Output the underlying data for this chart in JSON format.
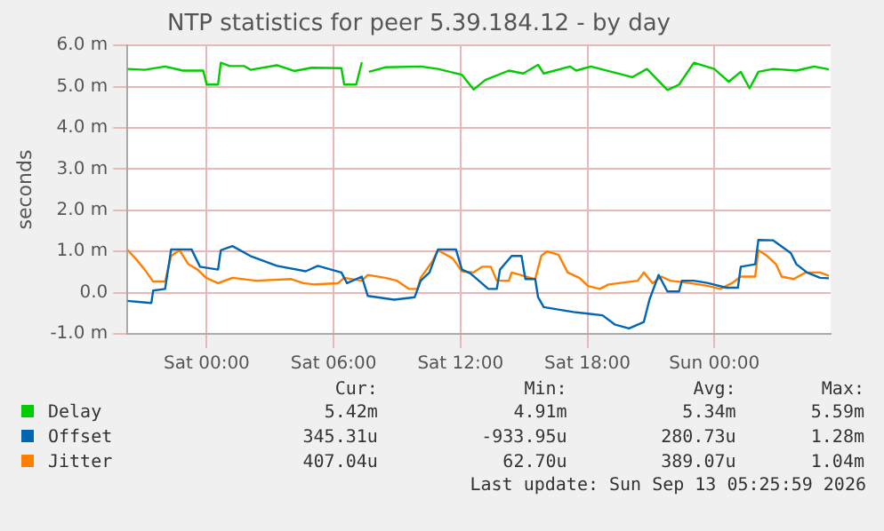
{
  "chart_data": {
    "type": "line",
    "title": "NTP statistics for peer 5.39.184.12 - by day",
    "ylabel": "seconds",
    "xlim": [
      "2026-09-11T20:15",
      "2026-09-13T05:30"
    ],
    "xticks": [
      {
        "value": "2026-09-12T00:00",
        "label": "Sat 00:00"
      },
      {
        "value": "2026-09-12T06:00",
        "label": "Sat 06:00"
      },
      {
        "value": "2026-09-12T12:00",
        "label": "Sat 12:00"
      },
      {
        "value": "2026-09-12T18:00",
        "label": "Sat 18:00"
      },
      {
        "value": "2026-09-13T00:00",
        "label": "Sun 00:00"
      }
    ],
    "ylim": [
      -1,
      6
    ],
    "yticks": [
      {
        "value": -1,
        "label": "-1.0 m"
      },
      {
        "value": 0,
        "label": "0.0"
      },
      {
        "value": 1,
        "label": "1.0 m"
      },
      {
        "value": 2,
        "label": "2.0 m"
      },
      {
        "value": 3,
        "label": "3.0 m"
      },
      {
        "value": 4,
        "label": "4.0 m"
      },
      {
        "value": 5,
        "label": "5.0 m"
      },
      {
        "value": 6,
        "label": "6.0 m"
      }
    ],
    "grid": true,
    "legend": "bottom",
    "marker": "none",
    "line_style": "solid",
    "series": [
      {
        "name": "Delay",
        "color": "#00cc00",
        "x": [
          "2026-09-11T20:15",
          "2026-09-11T21:04",
          "2026-09-11T22:02",
          "2026-09-11T22:52",
          "2026-09-11T23:50",
          "2026-09-12T00:00",
          "2026-09-12T00:32",
          "2026-09-12T00:40",
          "2026-09-12T01:05",
          "2026-09-12T01:47",
          "2026-09-12T02:04",
          "2026-09-12T03:19",
          "2026-09-12T04:08",
          "2026-09-12T04:58",
          "2026-09-12T06:22",
          "2026-09-12T06:30",
          "2026-09-12T07:04",
          "2026-09-12T07:20",
          "2026-09-12T07:30",
          "2026-09-12T07:40",
          "2026-09-12T08:26",
          "2026-09-12T10:07",
          "2026-09-12T10:56",
          "2026-09-12T12:04",
          "2026-09-12T12:37",
          "2026-09-12T13:10",
          "2026-09-12T14:17",
          "2026-09-12T14:58",
          "2026-09-12T15:40",
          "2026-09-12T15:56",
          "2026-09-12T17:11",
          "2026-09-12T17:28",
          "2026-09-12T18:10",
          "2026-09-12T20:07",
          "2026-09-12T20:49",
          "2026-09-12T21:47",
          "2026-09-12T22:20",
          "2026-09-12T23:02",
          "2026-09-13T00:00",
          "2026-09-13T00:41",
          "2026-09-13T01:15",
          "2026-09-13T01:40",
          "2026-09-13T02:05",
          "2026-09-13T02:47",
          "2026-09-13T03:53",
          "2026-09-13T04:43",
          "2026-09-13T05:25"
        ],
        "values": [
          5.43,
          5.41,
          5.49,
          5.39,
          5.39,
          5.05,
          5.05,
          5.58,
          5.5,
          5.5,
          5.41,
          5.52,
          5.38,
          5.46,
          5.45,
          5.05,
          5.05,
          5.59,
          null,
          5.36,
          5.47,
          5.49,
          5.43,
          5.29,
          4.93,
          5.16,
          5.39,
          5.32,
          5.53,
          5.32,
          5.49,
          5.39,
          5.49,
          5.23,
          5.43,
          4.92,
          5.05,
          5.58,
          5.43,
          5.12,
          5.36,
          4.96,
          5.36,
          5.43,
          5.39,
          5.49,
          5.42
        ]
      },
      {
        "name": "Offset",
        "color": "#0066b3",
        "x": [
          "2026-09-11T20:15",
          "2026-09-11T20:54",
          "2026-09-11T21:23",
          "2026-09-11T21:28",
          "2026-09-11T22:02",
          "2026-09-11T22:19",
          "2026-09-11T23:17",
          "2026-09-11T23:41",
          "2026-09-12T00:32",
          "2026-09-12T00:40",
          "2026-09-12T01:13",
          "2026-09-12T02:04",
          "2026-09-12T02:45",
          "2026-09-12T03:19",
          "2026-09-12T04:41",
          "2026-09-12T05:15",
          "2026-09-12T06:22",
          "2026-09-12T06:38",
          "2026-09-12T07:20",
          "2026-09-12T07:37",
          "2026-09-12T08:52",
          "2026-09-12T09:50",
          "2026-09-12T10:07",
          "2026-09-12T10:32",
          "2026-09-12T10:56",
          "2026-09-12T11:47",
          "2026-09-12T12:04",
          "2026-09-12T12:28",
          "2026-09-12T13:19",
          "2026-09-12T13:43",
          "2026-09-12T13:52",
          "2026-09-12T14:25",
          "2026-09-12T14:53",
          "2026-09-12T15:04",
          "2026-09-12T15:32",
          "2026-09-12T15:40",
          "2026-09-12T15:56",
          "2026-09-12T17:20",
          "2026-09-12T18:02",
          "2026-09-12T18:43",
          "2026-09-12T19:17",
          "2026-09-12T19:58",
          "2026-09-12T20:40",
          "2026-09-12T20:56",
          "2026-09-12T21:22",
          "2026-09-12T21:47",
          "2026-09-12T22:20",
          "2026-09-12T22:28",
          "2026-09-12T23:02",
          "2026-09-12T23:43",
          "2026-09-13T00:34",
          "2026-09-13T01:07",
          "2026-09-13T01:15",
          "2026-09-13T01:56",
          "2026-09-13T02:05",
          "2026-09-13T02:47",
          "2026-09-13T03:37",
          "2026-09-13T03:53",
          "2026-09-13T04:23",
          "2026-09-13T05:00",
          "2026-09-13T05:25"
        ],
        "values": [
          -0.2,
          -0.23,
          -0.25,
          0.05,
          0.09,
          1.05,
          1.05,
          0.63,
          0.56,
          1.03,
          1.13,
          0.89,
          0.76,
          0.65,
          0.52,
          0.65,
          0.49,
          0.23,
          0.39,
          -0.08,
          -0.17,
          -0.11,
          0.29,
          0.49,
          1.05,
          1.05,
          0.56,
          0.47,
          0.09,
          0.09,
          0.56,
          0.89,
          0.89,
          0.33,
          0.33,
          -0.11,
          -0.35,
          -0.47,
          -0.51,
          -0.55,
          -0.77,
          -0.87,
          -0.71,
          -0.17,
          0.43,
          0.03,
          0.03,
          0.29,
          0.29,
          0.23,
          0.12,
          0.12,
          0.63,
          0.69,
          1.28,
          1.27,
          0.96,
          0.69,
          0.49,
          0.36,
          0.35
        ]
      },
      {
        "name": "Jitter",
        "color": "#ff8000",
        "x": [
          "2026-09-11T20:15",
          "2026-09-11T20:38",
          "2026-09-11T21:04",
          "2026-09-11T21:28",
          "2026-09-11T22:02",
          "2026-09-11T22:19",
          "2026-09-11T22:43",
          "2026-09-11T23:08",
          "2026-09-11T23:34",
          "2026-09-11T23:58",
          "2026-09-12T00:32",
          "2026-09-12T01:13",
          "2026-09-12T02:20",
          "2026-09-12T04:00",
          "2026-09-12T04:34",
          "2026-09-12T05:07",
          "2026-09-12T06:13",
          "2026-09-12T06:30",
          "2026-09-12T07:20",
          "2026-09-12T07:37",
          "2026-09-12T08:26",
          "2026-09-12T09:00",
          "2026-09-12T09:34",
          "2026-09-12T09:58",
          "2026-09-12T10:07",
          "2026-09-12T10:40",
          "2026-09-12T10:56",
          "2026-09-12T11:38",
          "2026-09-12T12:04",
          "2026-09-12T12:37",
          "2026-09-12T13:02",
          "2026-09-12T13:26",
          "2026-09-12T13:43",
          "2026-09-12T14:17",
          "2026-09-12T14:25",
          "2026-09-12T15:32",
          "2026-09-12T15:49",
          "2026-09-12T16:05",
          "2026-09-12T16:38",
          "2026-09-12T17:04",
          "2026-09-12T17:37",
          "2026-09-12T18:02",
          "2026-09-12T18:35",
          "2026-09-12T19:00",
          "2026-09-12T20:23",
          "2026-09-12T20:40",
          "2026-09-12T21:05",
          "2026-09-12T21:30",
          "2026-09-12T21:55",
          "2026-09-12T22:53",
          "2026-09-12T23:43",
          "2026-09-13T00:17",
          "2026-09-13T00:50",
          "2026-09-13T01:15",
          "2026-09-13T01:56",
          "2026-09-13T02:05",
          "2026-09-13T02:30",
          "2026-09-13T02:55",
          "2026-09-13T03:11",
          "2026-09-13T03:45",
          "2026-09-13T04:19",
          "2026-09-13T05:00",
          "2026-09-13T05:25"
        ],
        "values": [
          1.04,
          0.83,
          0.56,
          0.27,
          0.27,
          0.89,
          1.03,
          0.69,
          0.56,
          0.36,
          0.23,
          0.36,
          0.29,
          0.33,
          0.23,
          0.2,
          0.23,
          0.36,
          0.29,
          0.43,
          0.36,
          0.29,
          0.09,
          0.09,
          0.36,
          0.76,
          1.03,
          0.83,
          0.52,
          0.49,
          0.63,
          0.63,
          0.29,
          0.29,
          0.49,
          0.33,
          0.89,
          1.0,
          0.92,
          0.49,
          0.36,
          0.16,
          0.09,
          0.2,
          0.29,
          0.49,
          0.23,
          0.39,
          0.29,
          0.23,
          0.16,
          0.09,
          0.23,
          0.39,
          0.39,
          1.03,
          0.89,
          0.69,
          0.39,
          0.33,
          0.49,
          0.49,
          0.41
        ]
      }
    ],
    "annotations": [
      "Cur:",
      "Min:",
      "Avg:",
      "Max:",
      "5.42m",
      "4.91m",
      "5.34m",
      "5.59m",
      "345.31u",
      "-933.95u",
      "280.73u",
      "1.28m",
      "407.04u",
      "62.70u",
      "389.07u",
      "1.04m",
      "Last update: Sun Sep 13 05:25:59 2026"
    ]
  }
}
